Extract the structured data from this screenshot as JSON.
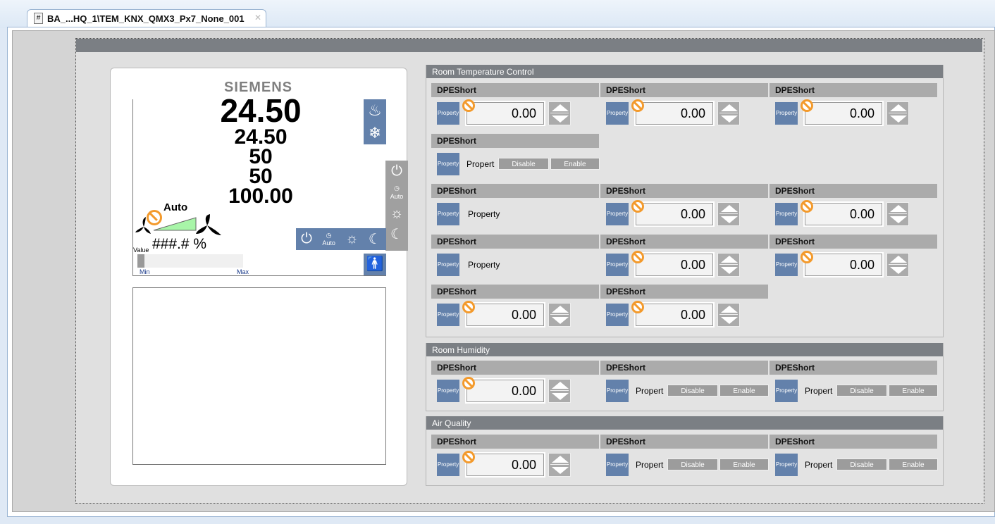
{
  "tab": {
    "title": "BA_...HQ_1\\TEM_KNX_QMX3_Px7_None_001",
    "icon": "#"
  },
  "device": {
    "brand": "SIEMENS",
    "values": [
      "24.50",
      "24.50",
      "50",
      "50",
      "100.00"
    ],
    "fan_mode": "Auto",
    "fan_percent": "###.# %",
    "slider": {
      "label": "Value",
      "min": "Min",
      "max": "Max",
      "level": 0
    },
    "auto_label": "Auto",
    "colors": {
      "accent": "#6381ab",
      "ramp": "#a8f5a8",
      "warning": "#f39a2c"
    }
  },
  "sections": [
    {
      "title": "Room Temperature Control",
      "rows": [
        [
          {
            "label": "DPEShort",
            "type": "num",
            "value": "0.00"
          },
          {
            "label": "DPEShort",
            "type": "num",
            "value": "0.00"
          },
          {
            "label": "DPEShort",
            "type": "num",
            "value": "0.00"
          }
        ],
        [
          {
            "label": "DPEShort",
            "type": "toggle",
            "text": "Propert",
            "disable": "Disable",
            "enable": "Enable"
          }
        ],
        [
          {
            "label": "DPEShort",
            "type": "text",
            "text": "Property"
          },
          {
            "label": "DPEShort",
            "type": "num",
            "value": "0.00"
          },
          {
            "label": "DPEShort",
            "type": "num",
            "value": "0.00"
          }
        ],
        [
          {
            "label": "DPEShort",
            "type": "text",
            "text": "Property"
          },
          {
            "label": "DPEShort",
            "type": "num",
            "value": "0.00"
          },
          {
            "label": "DPEShort",
            "type": "num",
            "value": "0.00"
          }
        ],
        [
          {
            "label": "DPEShort",
            "type": "num",
            "value": "0.00"
          },
          {
            "label": "DPEShort",
            "type": "num",
            "value": "0.00"
          }
        ]
      ]
    },
    {
      "title": "Room Humidity",
      "rows": [
        [
          {
            "label": "DPEShort",
            "type": "num",
            "value": "0.00"
          },
          {
            "label": "DPEShort",
            "type": "toggle",
            "text": "Propert",
            "disable": "Disable",
            "enable": "Enable"
          },
          {
            "label": "DPEShort",
            "type": "toggle",
            "text": "Propert",
            "disable": "Disable",
            "enable": "Enable"
          }
        ]
      ]
    },
    {
      "title": "Air Quality",
      "rows": [
        [
          {
            "label": "DPEShort",
            "type": "num",
            "value": "0.00"
          },
          {
            "label": "DPEShort",
            "type": "toggle",
            "text": "Propert",
            "disable": "Disable",
            "enable": "Enable"
          },
          {
            "label": "DPEShort",
            "type": "toggle",
            "text": "Propert",
            "disable": "Disable",
            "enable": "Enable"
          }
        ]
      ]
    }
  ],
  "property_button_label": "Property"
}
